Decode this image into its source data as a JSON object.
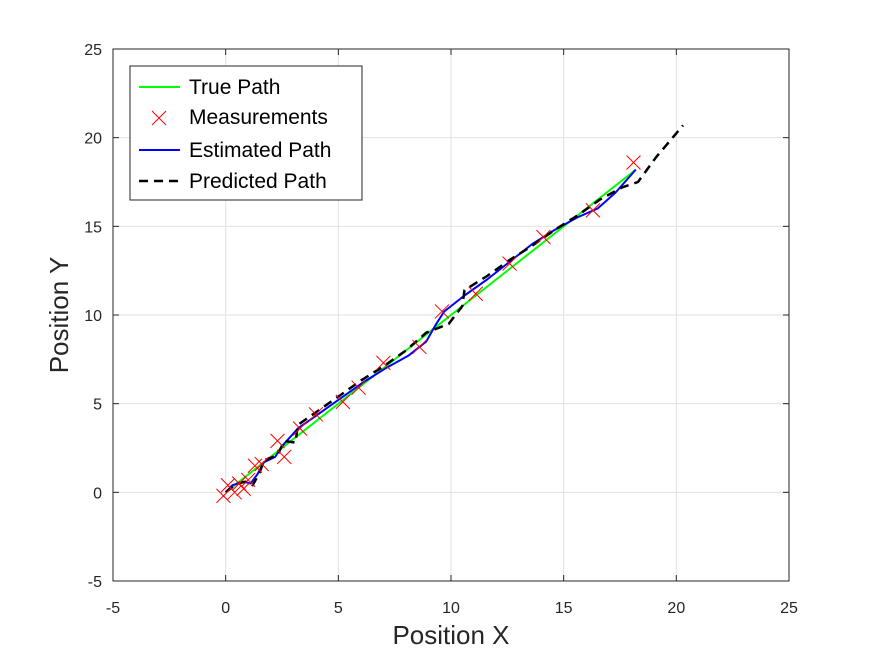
{
  "colors": {
    "true_path": "#00ff00",
    "measurements": "#ff0000",
    "estimated_path": "#0000ff",
    "predicted_path": "#000000",
    "axis": "#262626",
    "grid": "#e2e2e2"
  },
  "chart_data": {
    "type": "line",
    "xlabel": "Position X",
    "ylabel": "Position Y",
    "xlim": [
      -5,
      25
    ],
    "ylim": [
      -5,
      25
    ],
    "x_ticks": [
      "-5",
      "0",
      "5",
      "10",
      "15",
      "20",
      "25"
    ],
    "y_ticks": [
      "-5",
      "0",
      "5",
      "10",
      "15",
      "20",
      "25"
    ],
    "grid": true,
    "legend_position": "top-left",
    "series": [
      {
        "name": "True Path",
        "style": "solid-line",
        "x": [
          0,
          18.2
        ],
        "y": [
          0,
          18.2
        ]
      },
      {
        "name": "Measurements",
        "style": "x-markers",
        "x": [
          -0.1,
          0.1,
          0.4,
          0.6,
          0.8,
          1.0,
          1.3,
          1.6,
          2.3,
          2.6,
          3.3,
          4.0,
          5.2,
          5.9,
          7.0,
          8.6,
          9.6,
          11.1,
          12.6,
          14.1,
          16.3,
          18.1
        ],
        "y": [
          -0.2,
          0.4,
          0.0,
          0.5,
          0.2,
          0.7,
          1.5,
          1.6,
          2.9,
          2.0,
          3.6,
          4.4,
          5.1,
          5.9,
          7.3,
          8.2,
          10.2,
          11.2,
          12.9,
          14.4,
          15.9,
          18.6
        ]
      },
      {
        "name": "Estimated Path",
        "style": "solid-line",
        "x": [
          0.0,
          0.3,
          0.8,
          1.1,
          1.4,
          1.7,
          2.2,
          2.5,
          3.2,
          4.1,
          5.1,
          6.1,
          7.1,
          8.1,
          8.9,
          9.3,
          9.7,
          10.6,
          11.6,
          12.6,
          13.6,
          14.6,
          15.6,
          16.5,
          17.3,
          18.2
        ],
        "y": [
          0.0,
          0.4,
          0.6,
          0.5,
          1.0,
          1.7,
          2.0,
          2.6,
          3.6,
          4.4,
          5.3,
          6.2,
          7.0,
          7.7,
          8.5,
          9.4,
          10.2,
          11.1,
          12.0,
          13.0,
          14.0,
          14.8,
          15.5,
          16.0,
          16.9,
          18.2
        ]
      },
      {
        "name": "Predicted Path",
        "style": "dashed-line",
        "x": [
          0.0,
          0.5,
          0.9,
          1.2,
          1.5,
          1.7,
          2.3,
          2.6,
          3.1,
          3.2,
          4.1,
          5.0,
          6.0,
          7.0,
          8.0,
          8.9,
          9.9,
          10.5,
          10.6,
          11.6,
          12.6,
          13.6,
          14.6,
          15.6,
          16.6,
          17.6,
          18.3,
          19.1,
          20.3
        ],
        "y": [
          0.0,
          0.5,
          0.6,
          0.4,
          1.1,
          1.8,
          2.1,
          2.9,
          2.8,
          3.8,
          4.6,
          5.4,
          6.3,
          7.1,
          8.0,
          9.0,
          9.5,
          10.5,
          11.4,
          12.2,
          13.1,
          13.9,
          14.8,
          15.6,
          16.5,
          17.2,
          17.5,
          18.9,
          20.7
        ]
      }
    ]
  }
}
